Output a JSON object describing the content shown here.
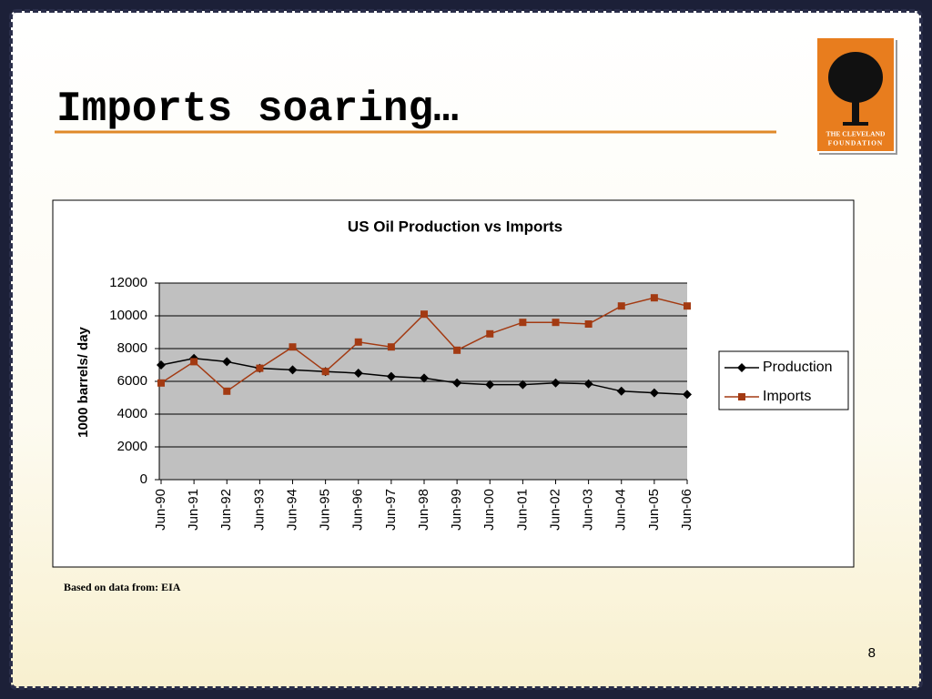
{
  "slide": {
    "title": "Imports soaring…",
    "source_note": "Based on data from: EIA",
    "page_number": "8",
    "logo": {
      "line1": "THE CLEVELAND",
      "line2": "FOUNDATION"
    }
  },
  "chart_data": {
    "type": "line",
    "title": "US Oil Production vs Imports",
    "y_label": "1000 barrels/ day",
    "categories": [
      "Jun-90",
      "Jun-91",
      "Jun-92",
      "Jun-93",
      "Jun-94",
      "Jun-95",
      "Jun-96",
      "Jun-97",
      "Jun-98",
      "Jun-99",
      "Jun-00",
      "Jun-01",
      "Jun-02",
      "Jun-03",
      "Jun-04",
      "Jun-05",
      "Jun-06"
    ],
    "series": [
      {
        "name": "Production",
        "color": "#000000",
        "marker": "diamond",
        "values": [
          7000,
          7400,
          7200,
          6800,
          6700,
          6600,
          6500,
          6300,
          6200,
          5900,
          5800,
          5800,
          5900,
          5850,
          5400,
          5300,
          5200
        ]
      },
      {
        "name": "Imports",
        "color": "#a33a12",
        "marker": "square",
        "values": [
          5900,
          7200,
          5400,
          6800,
          8100,
          6600,
          8400,
          8100,
          10100,
          7900,
          8900,
          9600,
          9600,
          9500,
          10600,
          11100,
          10600
        ]
      }
    ],
    "ylim": [
      0,
      12000
    ],
    "yticks": [
      0,
      2000,
      4000,
      6000,
      8000,
      10000,
      12000
    ],
    "grid": true,
    "legend": "right"
  }
}
